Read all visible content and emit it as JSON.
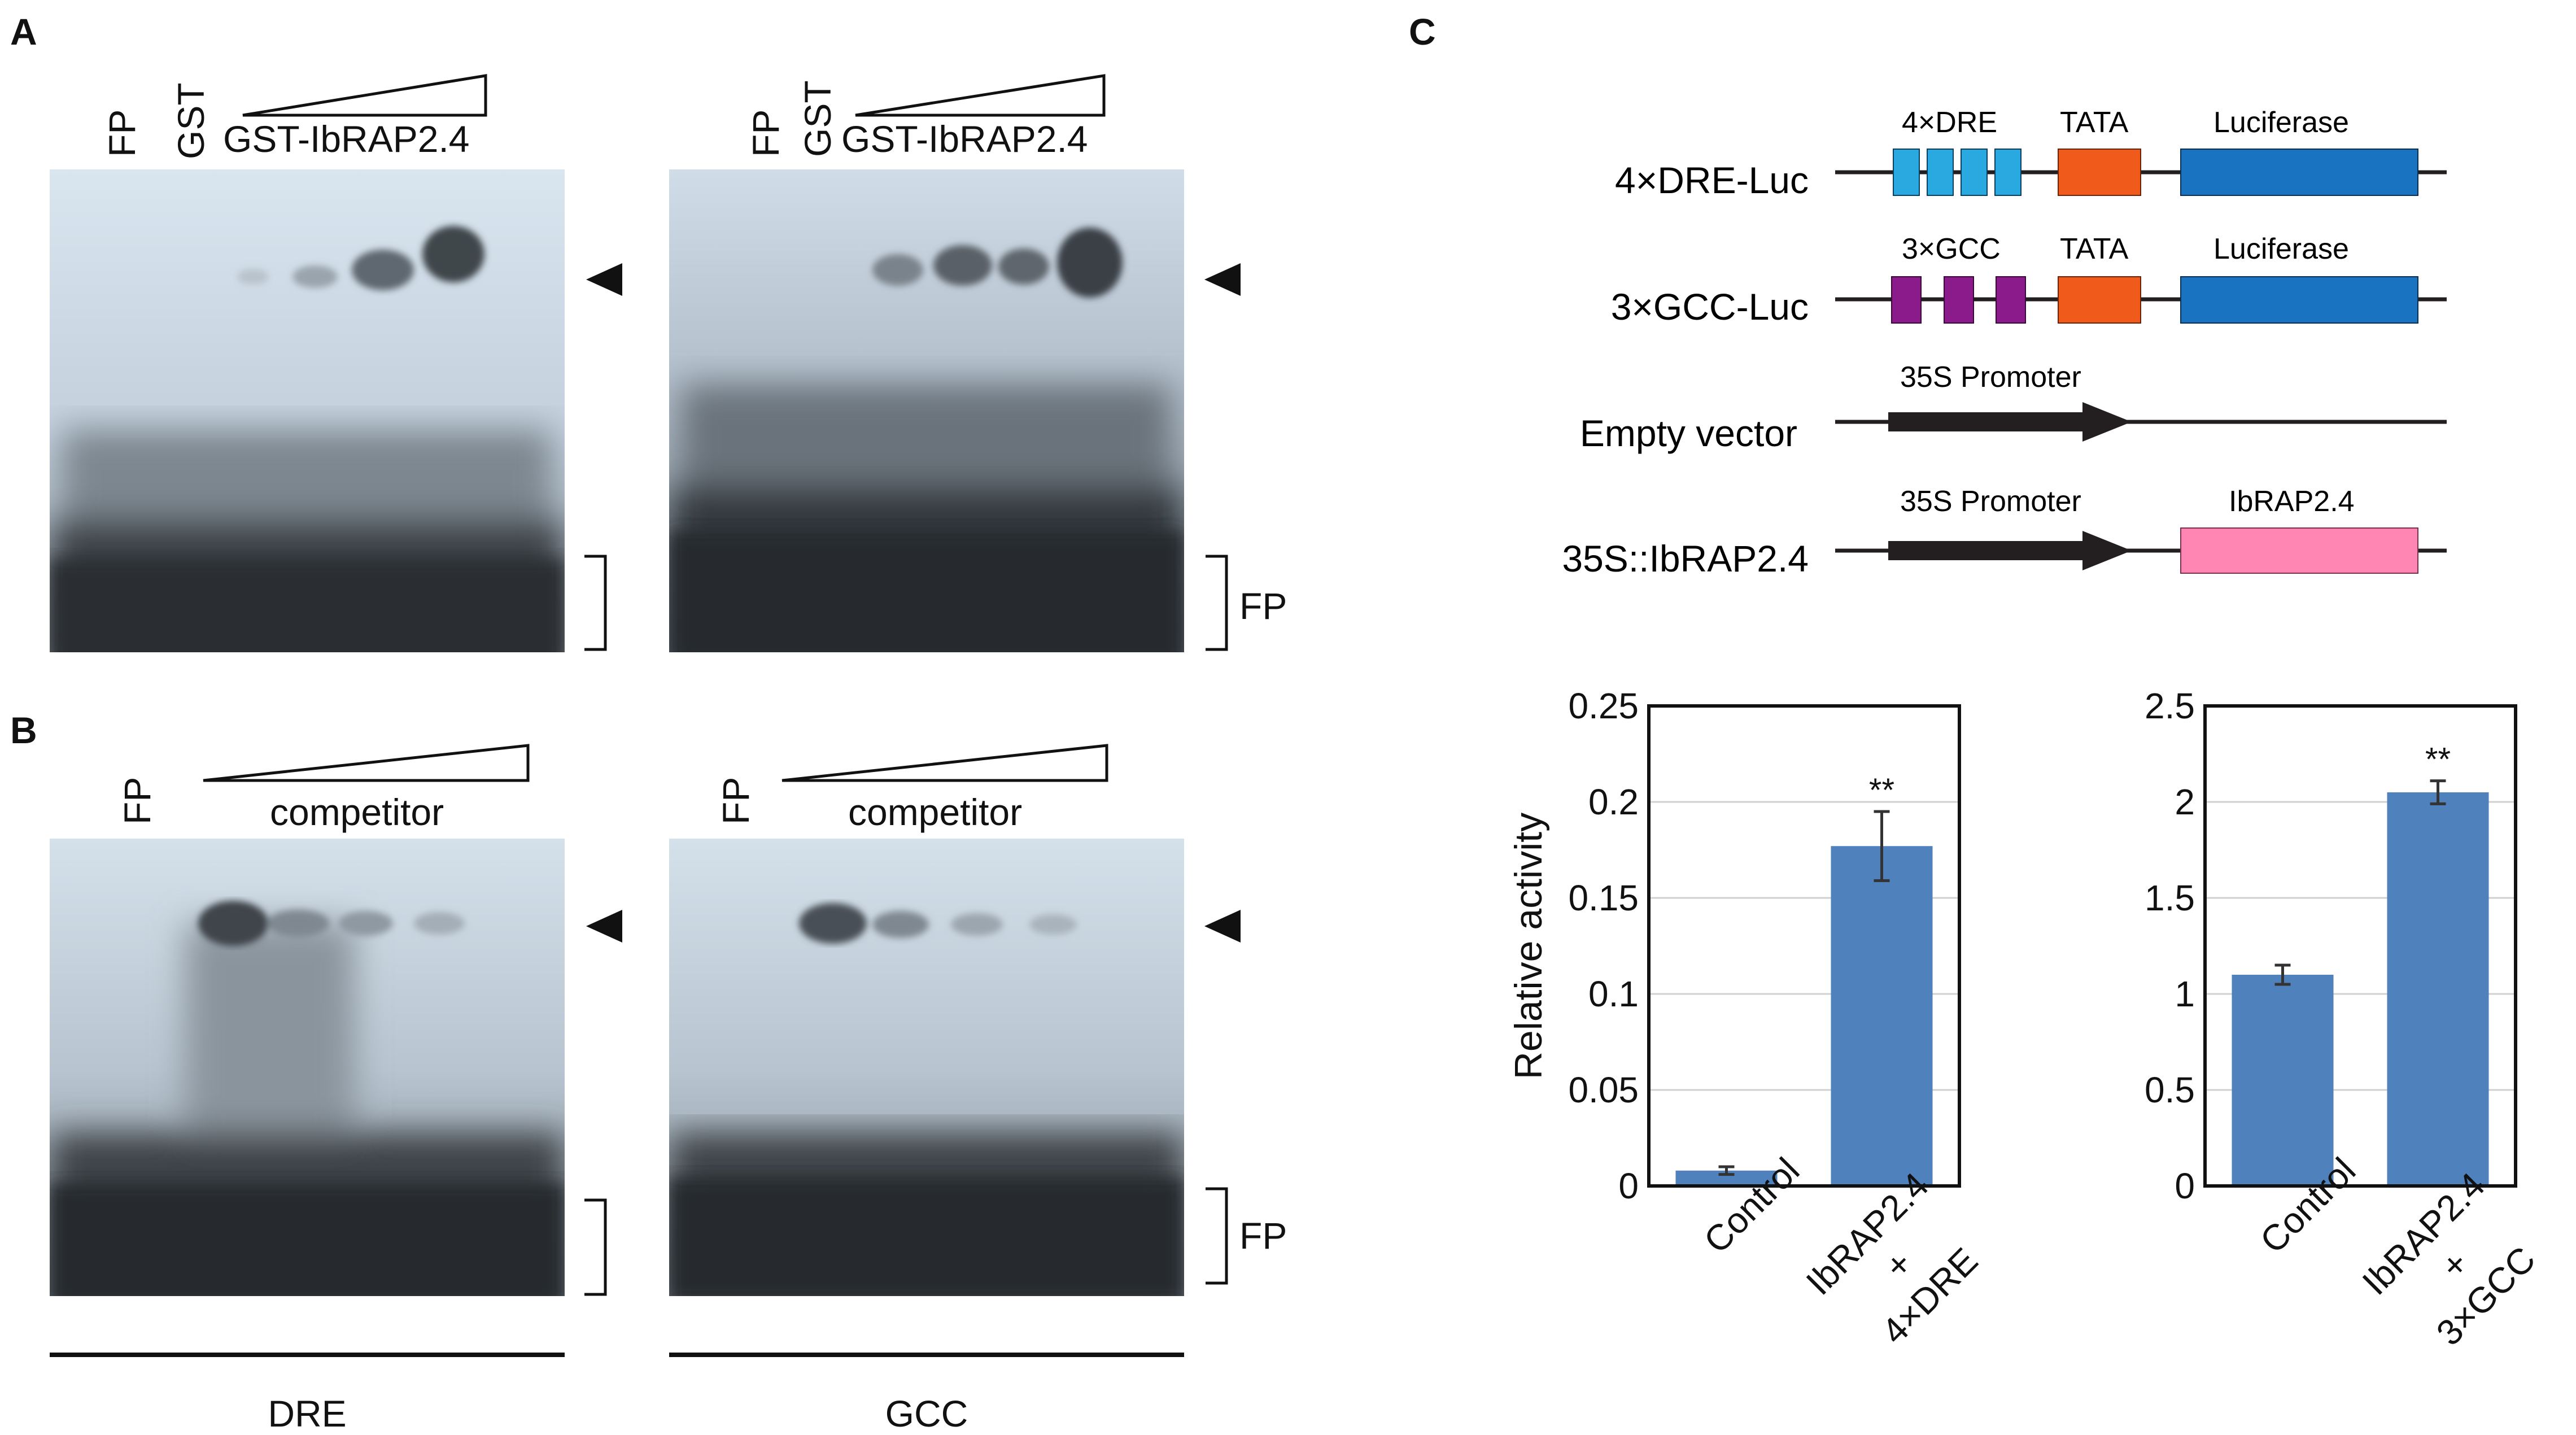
{
  "panels": {
    "a": "A",
    "b": "B",
    "c": "C"
  },
  "panel_a": {
    "left": {
      "lane_fp": "FP",
      "lane_gst": "GST",
      "header": "GST-IbRAP2.4"
    },
    "right": {
      "lane_fp": "FP",
      "lane_gst": "GST",
      "header": "GST-IbRAP2.4"
    },
    "fp_label": "FP"
  },
  "panel_b": {
    "left": {
      "lane_fp": "FP",
      "header": "competitor"
    },
    "right": {
      "lane_fp": "FP",
      "header": "competitor"
    },
    "fp_label": "FP",
    "caption_left": "DRE",
    "caption_right": "GCC"
  },
  "constructs": [
    {
      "name": "4×DRE-Luc",
      "element": "4×DRE",
      "tata": "TATA",
      "reporter": "Luciferase"
    },
    {
      "name": "3×GCC-Luc",
      "element": "3×GCC",
      "tata": "TATA",
      "reporter": "Luciferase"
    },
    {
      "name": "Empty vector",
      "promoter": "35S Promoter"
    },
    {
      "name": "35S::IbRAP2.4",
      "promoter": "35S Promoter",
      "gene": "IbRAP2.4"
    }
  ],
  "colors": {
    "dre_box": "#29a9e0",
    "gcc_box": "#8b1a8b",
    "tata_box": "#f05a1a",
    "luciferase_box": "#1a73c0",
    "gene_box": "#ff85b3",
    "bar": "#4f81bd"
  },
  "chart_data": [
    {
      "type": "bar",
      "categories": [
        "Control",
        "IbRAP2.4 + 4×DRE"
      ],
      "category_lines": [
        [
          "Control"
        ],
        [
          "IbRAP2.4",
          "+",
          "4×DRE"
        ]
      ],
      "values": [
        0.008,
        0.177
      ],
      "errors": [
        0.002,
        0.018
      ],
      "annotations": [
        "",
        "**"
      ],
      "ylabel": "Relative activity",
      "ylim": [
        0,
        0.25
      ],
      "yticks": [
        "0",
        "0.05",
        "0.1",
        "0.15",
        "0.2",
        "0.25"
      ],
      "grid": true
    },
    {
      "type": "bar",
      "categories": [
        "Control",
        "IbRAP2.4 + 3×GCC"
      ],
      "category_lines": [
        [
          "Control"
        ],
        [
          "IbRAP2.4",
          "+",
          "3×GCC"
        ]
      ],
      "values": [
        1.1,
        2.05
      ],
      "errors": [
        0.05,
        0.06
      ],
      "annotations": [
        "",
        "**"
      ],
      "ylabel": "",
      "ylim": [
        0,
        2.5
      ],
      "yticks": [
        "0",
        "0.5",
        "1",
        "1.5",
        "2",
        "2.5"
      ],
      "grid": true
    }
  ]
}
